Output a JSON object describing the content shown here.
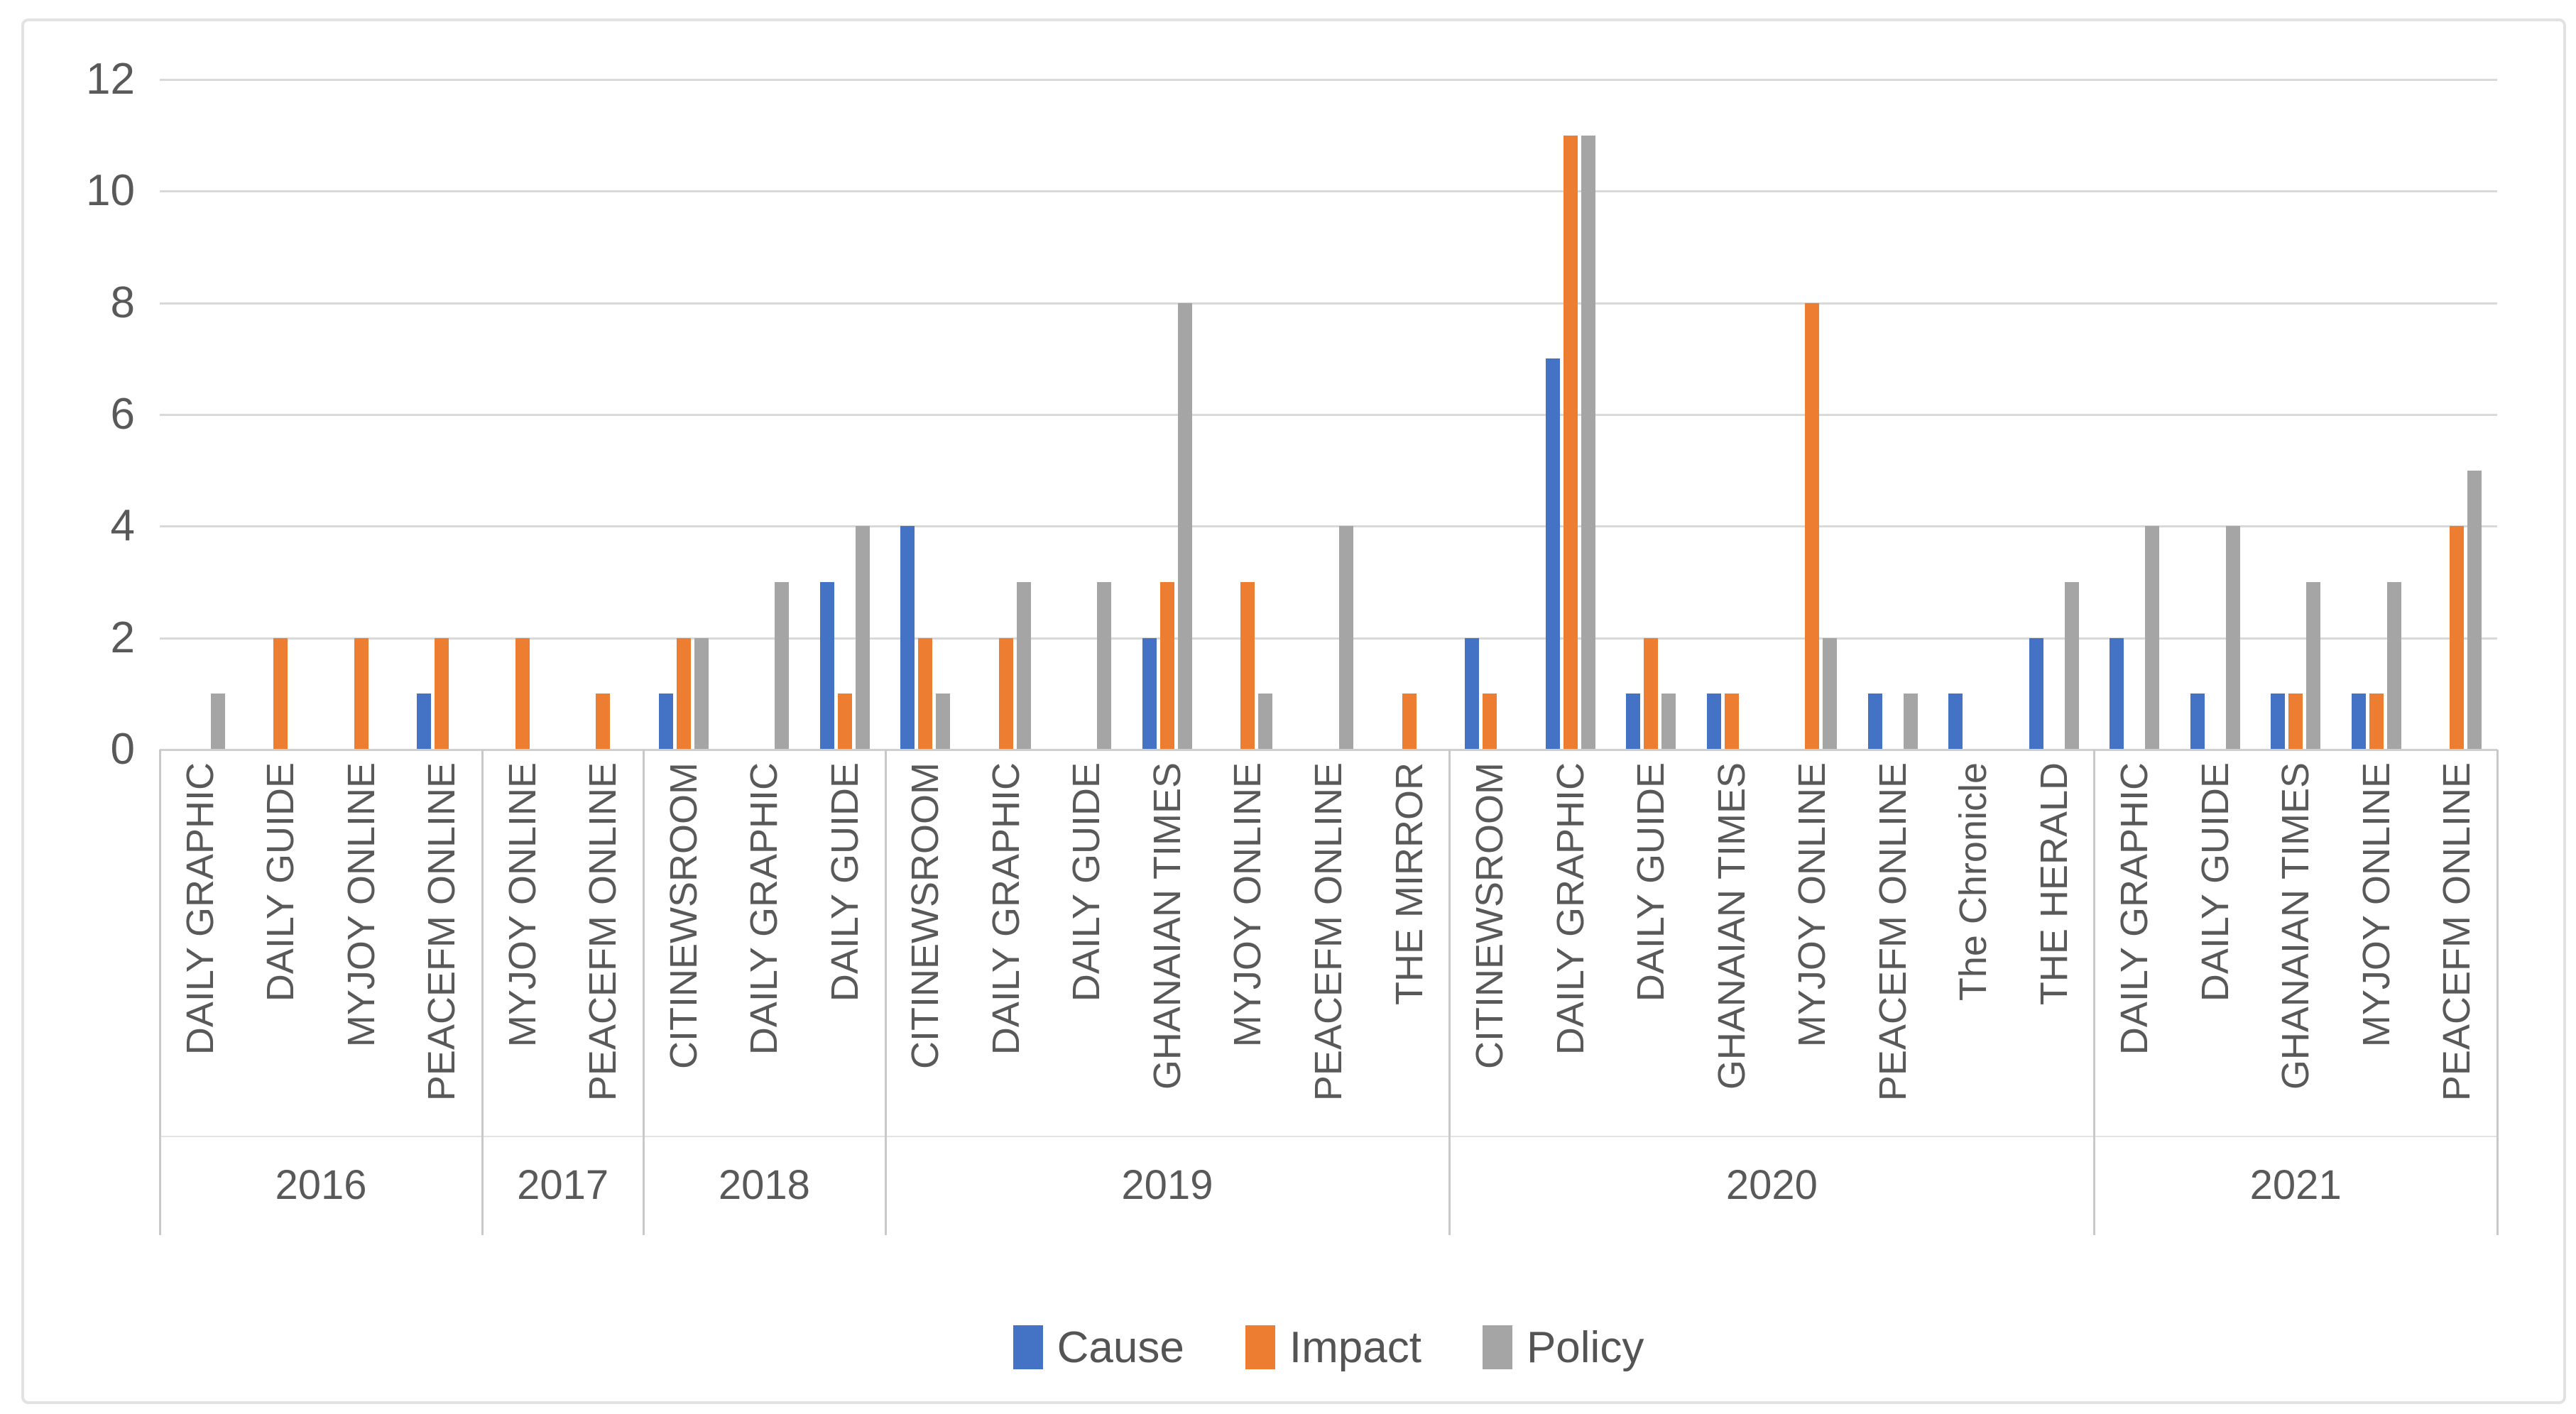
{
  "chart_data": {
    "type": "bar",
    "ylim": [
      0,
      12
    ],
    "yticks": [
      0,
      2,
      4,
      6,
      8,
      10,
      12
    ],
    "grid": true,
    "legend_position": "bottom",
    "categories": [
      "DAILY GRAPHIC",
      "DAILY GUIDE",
      "MYJOY ONLINE",
      "PEACEFM ONLINE",
      "MYJOY ONLINE",
      "PEACEFM ONLINE",
      "CITINEWSROOM",
      "DAILY GRAPHIC",
      "DAILY GUIDE",
      "CITINEWSROOM",
      "DAILY GRAPHIC",
      "DAILY GUIDE",
      "GHANAIAN TIMES",
      "MYJOY ONLINE",
      "PEACEFM ONLINE",
      "THE MIRROR",
      "CITINEWSROOM",
      "DAILY GRAPHIC",
      "DAILY GUIDE",
      "GHANAIAN TIMES",
      "MYJOY ONLINE",
      "PEACEFM ONLINE",
      "The Chronicle",
      "THE HERALD",
      "DAILY GRAPHIC",
      "DAILY GUIDE",
      "GHANAIAN TIMES",
      "MYJOY ONLINE",
      "PEACEFM ONLINE"
    ],
    "year_groups": [
      {
        "label": "2016",
        "count": 4
      },
      {
        "label": "2017",
        "count": 2
      },
      {
        "label": "2018",
        "count": 3
      },
      {
        "label": "2019",
        "count": 7
      },
      {
        "label": "2020",
        "count": 8
      },
      {
        "label": "2021",
        "count": 5
      }
    ],
    "series": [
      {
        "name": "Cause",
        "color": "#4472C4",
        "values": [
          0,
          0,
          0,
          1,
          0,
          0,
          1,
          0,
          3,
          4,
          0,
          0,
          2,
          0,
          0,
          0,
          2,
          7,
          1,
          1,
          0,
          1,
          1,
          2,
          2,
          1,
          1,
          1,
          0
        ]
      },
      {
        "name": "Impact",
        "color": "#ED7D31",
        "values": [
          0,
          2,
          2,
          2,
          2,
          1,
          2,
          0,
          1,
          2,
          2,
          0,
          3,
          3,
          0,
          1,
          1,
          11,
          2,
          1,
          8,
          0,
          0,
          0,
          0,
          0,
          1,
          1,
          4
        ]
      },
      {
        "name": "Policy",
        "color": "#A5A5A5",
        "values": [
          1,
          0,
          0,
          0,
          0,
          0,
          2,
          3,
          4,
          1,
          3,
          3,
          8,
          1,
          4,
          0,
          0,
          11,
          1,
          0,
          2,
          1,
          0,
          3,
          4,
          4,
          3,
          3,
          5
        ]
      }
    ]
  },
  "colors": {
    "axis_text": "#595959",
    "gridline": "#D9D9D9",
    "separator": "#C9C9C9",
    "chart_border": "#E2E2E2",
    "background": "#FFFFFF"
  }
}
